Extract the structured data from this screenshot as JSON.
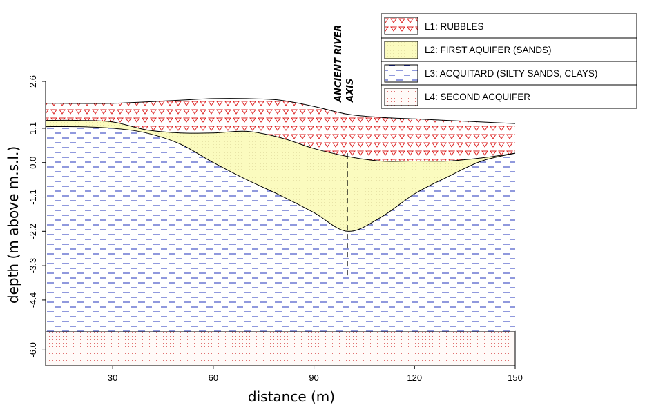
{
  "chart_data": {
    "type": "area",
    "xlabel": "distance (m)",
    "ylabel": "depth (m above m.s.l.)",
    "xlim": [
      10,
      150
    ],
    "ylim": [
      -6.5,
      2.6
    ],
    "x_ticks": [
      "30",
      "60",
      "90",
      "120",
      "150"
    ],
    "x_tick_values": [
      30,
      60,
      90,
      120,
      150
    ],
    "y_ticks": [
      "2.6",
      "1.1",
      "0.0",
      "-1.1",
      "-2.2",
      "-3.3",
      "-4.4",
      "-6.0"
    ],
    "y_tick_values": [
      2.6,
      1.1,
      0.0,
      -1.1,
      -2.2,
      -3.3,
      -4.4,
      -6.0
    ],
    "annotation": {
      "lines": [
        "ANCIENT RIVER",
        "AXIS"
      ],
      "x": 100,
      "y_top": 0.3,
      "y_bottom": -3.7
    },
    "legend": [
      {
        "id": "L1",
        "label": "L1: RUBBLES",
        "pattern": "triangles",
        "color": "#dd2222"
      },
      {
        "id": "L2",
        "label": "L2: FIRST AQUIFER (SANDS)",
        "pattern": "fill",
        "color": "#fbfbbf"
      },
      {
        "id": "L3",
        "label": "L3: ACQUITARD (SILTY SANDS, CLAYS)",
        "pattern": "dashes",
        "color": "#2233bb"
      },
      {
        "id": "L4",
        "label": "L4: SECOND ACQUIFER",
        "pattern": "dots",
        "color": "#e07070"
      }
    ],
    "surfaces": {
      "ground_top": {
        "x": [
          10,
          30,
          50,
          60,
          70,
          80,
          90,
          100,
          110,
          120,
          130,
          140,
          150
        ],
        "y": [
          1.9,
          1.9,
          2.0,
          2.05,
          2.05,
          2.0,
          1.8,
          1.55,
          1.45,
          1.4,
          1.35,
          1.3,
          1.25
        ]
      },
      "rubbles_base": {
        "x": [
          10,
          20,
          30,
          40,
          50,
          60,
          70,
          80,
          90,
          100,
          110,
          120,
          130,
          140,
          150
        ],
        "y": [
          1.35,
          1.35,
          1.3,
          1.05,
          0.95,
          0.95,
          1.0,
          0.8,
          0.45,
          0.2,
          0.05,
          0.05,
          0.05,
          0.15,
          0.3
        ]
      },
      "aquifer_base": {
        "x": [
          10,
          20,
          30,
          40,
          50,
          60,
          70,
          80,
          90,
          100,
          110,
          120,
          130,
          140,
          150
        ],
        "y": [
          1.15,
          1.15,
          1.1,
          0.95,
          0.6,
          0.0,
          -0.55,
          -1.05,
          -1.6,
          -2.2,
          -1.75,
          -1.0,
          -0.45,
          0.05,
          0.3
        ]
      },
      "acquitard_base": {
        "x": [
          10,
          150
        ],
        "y": [
          -5.4,
          -5.4
        ]
      }
    }
  }
}
